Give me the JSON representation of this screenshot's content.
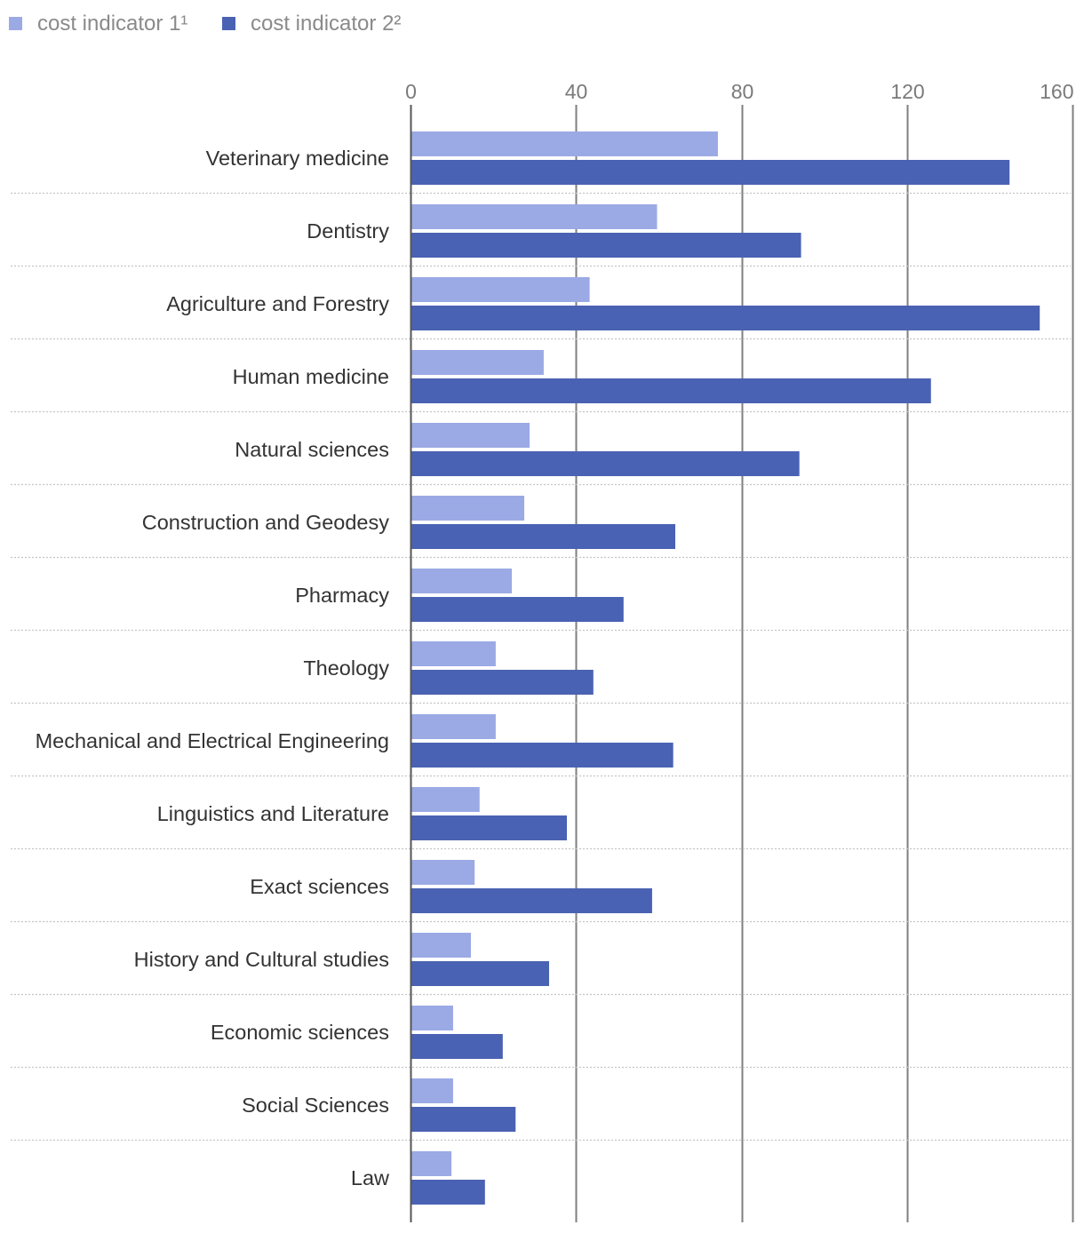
{
  "chart_data": {
    "type": "bar",
    "orientation": "horizontal",
    "title": "",
    "xlabel": "",
    "ylabel": "",
    "xlim": [
      0,
      160
    ],
    "ticks": [
      "0",
      "40",
      "80",
      "120",
      "160"
    ],
    "tick_values": [
      0,
      40,
      80,
      120,
      160
    ],
    "grid": true,
    "legend_position": "top-left",
    "categories": [
      "Veterinary medicine",
      "Dentistry",
      "Agriculture and Forestry",
      "Human medicine",
      "Natural sciences",
      "Construction and Geodesy",
      "Pharmacy",
      "Theology",
      "Mechanical and Electrical Engineering",
      "Linguistics and Literature",
      "Exact sciences",
      "History and Cultural studies",
      "Economic sciences",
      "Social Sciences",
      "Law"
    ],
    "series": [
      {
        "name": "cost indicator 1¹",
        "color": "#9baae5",
        "values": [
          74.3,
          59.6,
          43.3,
          32.2,
          28.8,
          27.5,
          24.5,
          20.6,
          20.6,
          16.7,
          15.5,
          14.6,
          10.3,
          10.3,
          9.9
        ]
      },
      {
        "name": "cost indicator 2²",
        "color": "#4a62b3",
        "values": [
          144.8,
          94.4,
          152.1,
          125.8,
          94.0,
          64.0,
          51.5,
          44.2,
          63.5,
          37.8,
          58.4,
          33.5,
          22.3,
          25.4,
          18.0
        ]
      }
    ]
  }
}
